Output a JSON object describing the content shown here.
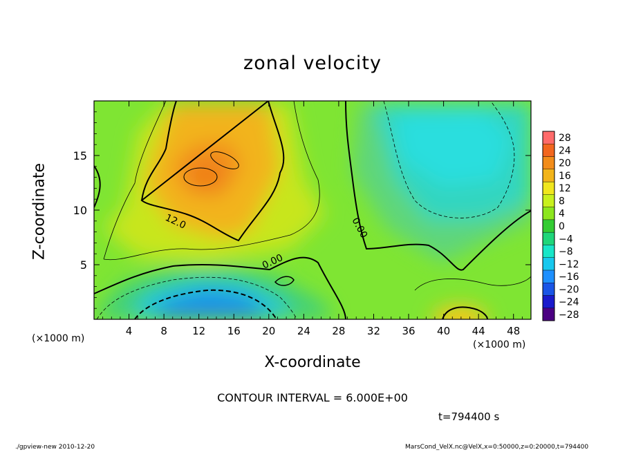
{
  "chart_data": {
    "type": "heatmap",
    "title": "zonal velocity",
    "xlabel": "X-coordinate",
    "ylabel": "Z-coordinate",
    "x_unit": "(×1000 m)",
    "x_ticks": [
      4,
      8,
      12,
      16,
      20,
      24,
      28,
      32,
      36,
      40,
      44,
      48
    ],
    "y_ticks": [
      5,
      10,
      15
    ],
    "xlim": [
      0,
      50
    ],
    "ylim": [
      0,
      20
    ],
    "colorbar_labels": [
      28,
      24,
      20,
      16,
      12,
      8,
      4,
      0,
      -4,
      -8,
      -12,
      -16,
      -20,
      -24,
      -28
    ],
    "colorbar_range": [
      -30,
      30
    ],
    "contour_labels": [
      "12.0",
      "0.00",
      "0.00"
    ],
    "contour_interval_text": "CONTOUR INTERVAL = 6.000E+00",
    "time_text": "t=794400 s",
    "features": [
      {
        "x": 13,
        "z": 13.5,
        "value": 17
      },
      {
        "x": 16,
        "z": 2,
        "value": -16
      },
      {
        "x": 40,
        "z": 15,
        "value": -10
      },
      {
        "x": 42,
        "z": 0,
        "value": 14
      }
    ],
    "grid": false
  },
  "footer": {
    "left": "./gpview-new  2010-12-20",
    "right": "MarsCond_VelX.nc@VelX,x=0:50000,z=0:20000,t=794400"
  },
  "colors": {
    "negative_min": "#4b0082",
    "zero": "#33cc33",
    "positive_max": "#ff6666"
  }
}
